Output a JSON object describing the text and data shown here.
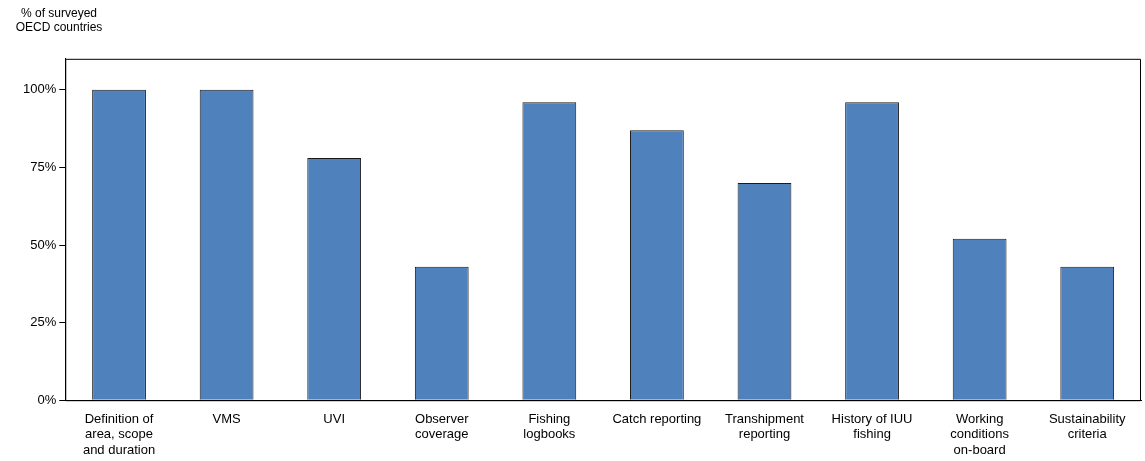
{
  "chart_data": {
    "type": "bar",
    "ylabel": "% of surveyed OECD countries",
    "categories": [
      "Definition of area, scope and duration",
      "VMS",
      "UVI",
      "Observer coverage",
      "Fishing logbooks",
      "Catch reporting",
      "Transhipment reporting",
      "History of IUU fishing",
      "Working conditions on-board",
      "Sustainability criteria"
    ],
    "values": [
      100,
      100,
      78,
      43,
      96,
      87,
      70,
      96,
      52,
      43
    ],
    "color": "#4f81bd",
    "ylim": [
      0,
      110
    ],
    "yticks": [
      {
        "value": 0,
        "label": "0%"
      },
      {
        "value": 25,
        "label": "25%"
      },
      {
        "value": 50,
        "label": "50%"
      },
      {
        "value": 75,
        "label": "75%"
      },
      {
        "value": 100,
        "label": "100%"
      }
    ],
    "grid": false,
    "legend": false
  }
}
